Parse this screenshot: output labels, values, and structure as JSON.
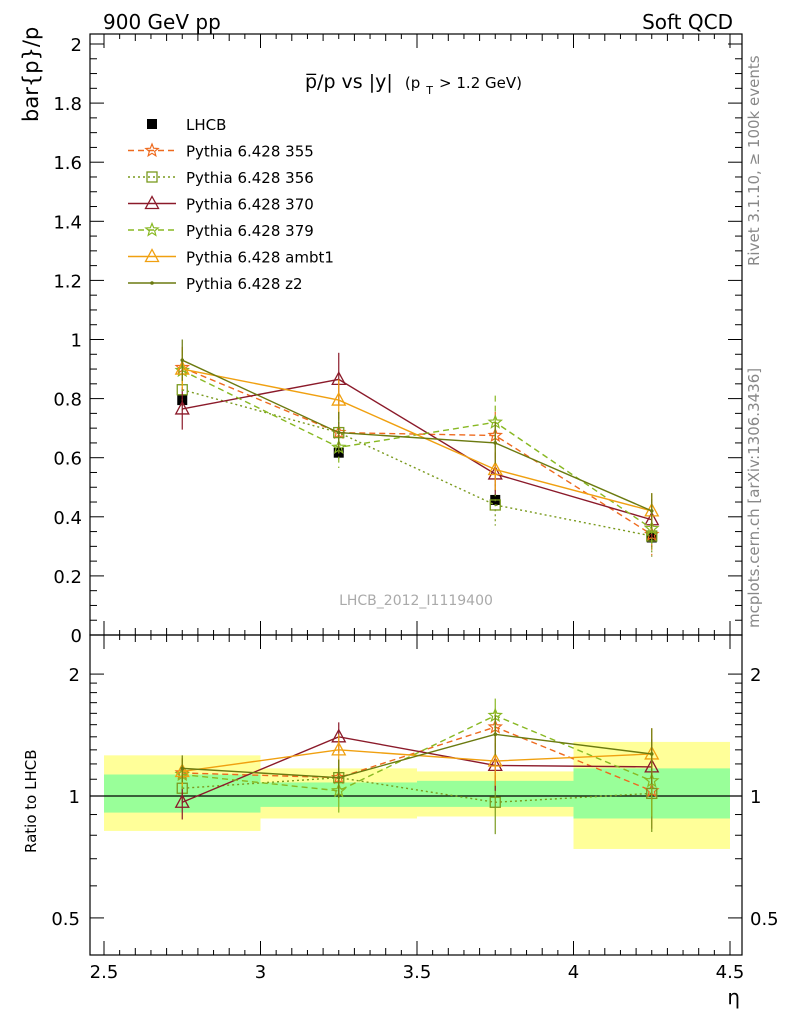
{
  "header": {
    "left": "900 GeV pp",
    "right": "Soft QCD"
  },
  "side_labels": {
    "rivet": "Rivet 3.1.10, ≥ 100k events",
    "mcplots": "mcplots.cern.ch [arXiv:1306.3436]"
  },
  "watermark": "LHCB_2012_I1119400",
  "chart_data": [
    {
      "type": "scatter",
      "title_main": "p̅/p vs |y|",
      "title_sub": "(p",
      "title_sub_index": "T",
      "title_sub_tail": " > 1.2 GeV)",
      "ylabel": "bar{p}/p",
      "xlabel": "η",
      "xlim": [
        2.5,
        4.5
      ],
      "ylim": [
        0,
        2.05
      ],
      "xticks": [
        "2.5",
        "3",
        "3.5",
        "4",
        "4.5"
      ],
      "yticks": [
        "0",
        "0.2",
        "0.4",
        "0.6",
        "0.8",
        "1",
        "1.2",
        "1.4",
        "1.6",
        "1.8",
        "2"
      ],
      "x": [
        2.75,
        3.25,
        3.75,
        4.25
      ],
      "legend_position": "top-left",
      "series": [
        {
          "name": "LHCB",
          "color": "#000000",
          "marker": "filled-square",
          "line": "none",
          "values": [
            0.795,
            0.617,
            0.457,
            0.33
          ],
          "errors": [
            0.02,
            0.02,
            0.02,
            0.02
          ]
        },
        {
          "name": "Pythia 6.428 355",
          "color": "#ee6a1e",
          "marker": "star",
          "line": "dashed",
          "values": [
            0.905,
            0.685,
            0.675,
            0.34
          ],
          "errors": [
            0.07,
            0.07,
            0.08,
            0.07
          ]
        },
        {
          "name": "Pythia 6.428 356",
          "color": "#7a9a1e",
          "marker": "open-square",
          "line": "dotted",
          "values": [
            0.83,
            0.685,
            0.44,
            0.335
          ],
          "errors": [
            0.07,
            0.07,
            0.07,
            0.07
          ]
        },
        {
          "name": "Pythia 6.428 370",
          "color": "#8b1a2a",
          "marker": "open-triangle",
          "line": "solid",
          "values": [
            0.765,
            0.865,
            0.545,
            0.39
          ],
          "errors": [
            0.07,
            0.09,
            0.07,
            0.07
          ]
        },
        {
          "name": "Pythia 6.428 379",
          "color": "#88b822",
          "marker": "star",
          "line": "dashed",
          "values": [
            0.895,
            0.635,
            0.72,
            0.36
          ],
          "errors": [
            0.07,
            0.07,
            0.09,
            0.07
          ]
        },
        {
          "name": "Pythia 6.428 ambt1",
          "color": "#f0a010",
          "marker": "open-triangle",
          "line": "solid",
          "values": [
            0.9,
            0.795,
            0.56,
            0.42
          ],
          "errors": [
            0.07,
            0.07,
            0.07,
            0.06
          ]
        },
        {
          "name": "Pythia 6.428 z2",
          "color": "#6b7a10",
          "marker": "dot",
          "line": "solid",
          "values": [
            0.93,
            0.685,
            0.65,
            0.42
          ],
          "errors": [
            0.07,
            0.07,
            0.07,
            0.06
          ]
        }
      ]
    },
    {
      "type": "scatter",
      "ylabel": "Ratio to LHCB",
      "xlabel": "η",
      "xlim": [
        2.5,
        4.5
      ],
      "ylim": [
        0.4,
        2.3
      ],
      "log_scale_y": true,
      "yticks": [
        "0.5",
        "1",
        "2"
      ],
      "x": [
        2.75,
        3.25,
        3.75,
        4.25
      ],
      "bands": [
        {
          "x_lo": [
            2.5,
            3.0,
            3.5,
            4.0
          ],
          "x_hi": [
            3.0,
            3.5,
            4.0,
            4.5
          ],
          "inner": [
            [
              0.91,
              1.13
            ],
            [
              0.94,
              1.08
            ],
            [
              0.94,
              1.09
            ],
            [
              0.88,
              1.17
            ]
          ],
          "outer": [
            [
              0.82,
              1.26
            ],
            [
              0.88,
              1.17
            ],
            [
              0.89,
              1.15
            ],
            [
              0.74,
              1.36
            ]
          ],
          "inner_color": "#99ff99",
          "outer_color": "#ffff99"
        }
      ],
      "series": [
        {
          "name": "Pythia 6.428 355",
          "values": [
            1.14,
            1.11,
            1.48,
            1.03
          ]
        },
        {
          "name": "Pythia 6.428 356",
          "values": [
            1.045,
            1.11,
            0.965,
            1.015
          ]
        },
        {
          "name": "Pythia 6.428 370",
          "values": [
            0.965,
            1.4,
            1.19,
            1.18
          ]
        },
        {
          "name": "Pythia 6.428 379",
          "values": [
            1.13,
            1.03,
            1.58,
            1.09
          ]
        },
        {
          "name": "Pythia 6.428 ambt1",
          "values": [
            1.15,
            1.3,
            1.22,
            1.27
          ]
        },
        {
          "name": "Pythia 6.428 z2",
          "values": [
            1.17,
            1.11,
            1.42,
            1.27
          ]
        }
      ],
      "ratio_errors": [
        0.09,
        0.12,
        0.16,
        0.2
      ]
    }
  ]
}
